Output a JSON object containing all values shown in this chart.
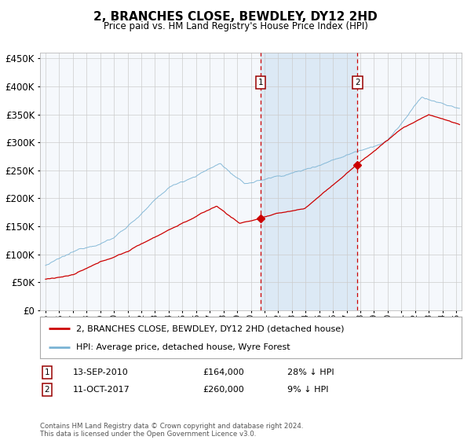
{
  "title": "2, BRANCHES CLOSE, BEWDLEY, DY12 2HD",
  "subtitle": "Price paid vs. HM Land Registry's House Price Index (HPI)",
  "legend_line1": "2, BRANCHES CLOSE, BEWDLEY, DY12 2HD (detached house)",
  "legend_line2": "HPI: Average price, detached house, Wyre Forest",
  "footnote": "Contains HM Land Registry data © Crown copyright and database right 2024.\nThis data is licensed under the Open Government Licence v3.0.",
  "annotation1_label": "1",
  "annotation1_date": "13-SEP-2010",
  "annotation1_price": "£164,000",
  "annotation1_hpi": "28% ↓ HPI",
  "annotation2_label": "2",
  "annotation2_date": "11-OCT-2017",
  "annotation2_price": "£260,000",
  "annotation2_hpi": "9% ↓ HPI",
  "sale1_x": 2010.71,
  "sale1_y": 164000,
  "sale2_x": 2017.79,
  "sale2_y": 260000,
  "ylim": [
    0,
    460000
  ],
  "yticks": [
    0,
    50000,
    100000,
    150000,
    200000,
    250000,
    300000,
    350000,
    400000,
    450000
  ],
  "xlim_start": 1994.6,
  "xlim_end": 2025.4,
  "hpi_color": "#7ab3d4",
  "price_color": "#cc0000",
  "shade_color": "#dce9f5",
  "vline_color": "#cc0000",
  "grid_color": "#cccccc",
  "background_color": "#ffffff",
  "ax_background": "#f5f8fc"
}
